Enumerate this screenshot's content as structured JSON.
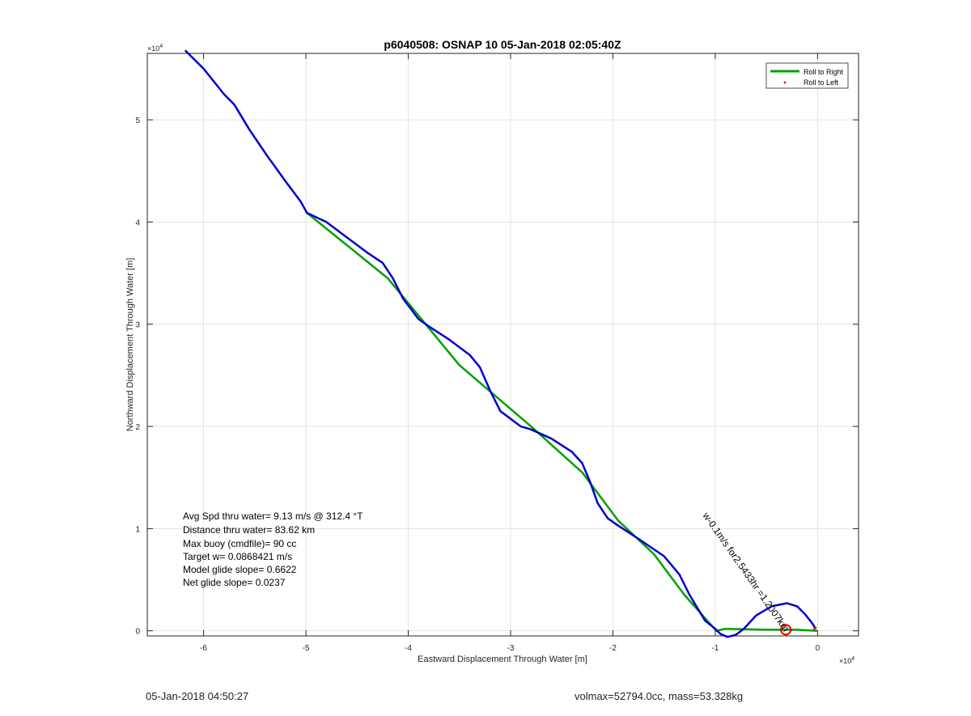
{
  "chart_data": {
    "type": "line",
    "title": "p6040508: OSNAP 10 05-Jan-2018 02:05:40Z",
    "xlabel": "Eastward Displacement Through Water [m]",
    "ylabel": "Northward Displacement Through Water [m]",
    "x_exponent_label": "×10",
    "y_exponent_label": "×10",
    "exponent": "4",
    "xlim": [
      -6.55,
      0.4
    ],
    "ylim": [
      -0.05,
      5.65
    ],
    "x_ticks": [
      -6,
      -5,
      -4,
      -3,
      -2,
      -1,
      0
    ],
    "y_ticks": [
      0,
      1,
      2,
      3,
      4,
      5
    ],
    "x_tick_labels": [
      "-6",
      "-5",
      "-4",
      "-3",
      "-2",
      "-1",
      "0"
    ],
    "y_tick_labels": [
      "0",
      "1",
      "2",
      "3",
      "4",
      "5"
    ],
    "grid": true,
    "legend_position": "top-right",
    "series": [
      {
        "name": "Roll to Right",
        "color": "#00a000",
        "style": "line",
        "x": [
          -4.99,
          -4.2,
          -3.5,
          -2.8,
          -2.3,
          -1.95,
          -1.6,
          -1.3,
          -0.99,
          -0.9,
          -0.5,
          -0.2,
          0.0
        ],
        "y": [
          4.09,
          3.45,
          2.6,
          2.0,
          1.55,
          1.08,
          0.75,
          0.35,
          0.0,
          0.02,
          0.01,
          0.01,
          0.0
        ]
      },
      {
        "name": "Roll to Left",
        "color": "#ff0000",
        "style": "points",
        "x": [
          -0.02,
          -0.03
        ],
        "y": [
          0.03,
          0.02
        ]
      }
    ],
    "track": {
      "color": "#0000cc",
      "x": [
        -6.18,
        -6.0,
        -5.8,
        -5.7,
        -5.55,
        -5.38,
        -5.2,
        -5.05,
        -4.99,
        -4.8,
        -4.6,
        -4.4,
        -4.25,
        -4.15,
        -4.05,
        -3.9,
        -3.8,
        -3.6,
        -3.4,
        -3.3,
        -3.2,
        -3.1,
        -2.9,
        -2.8,
        -2.6,
        -2.4,
        -2.3,
        -2.22,
        -2.15,
        -2.05,
        -1.95,
        -1.75,
        -1.5,
        -1.35,
        -1.25,
        -1.1,
        -1.0,
        -0.95,
        -0.88,
        -0.8,
        -0.72,
        -0.6,
        -0.45,
        -0.3,
        -0.2,
        -0.12,
        -0.05,
        -0.02
      ],
      "y": [
        5.68,
        5.5,
        5.25,
        5.15,
        4.9,
        4.65,
        4.4,
        4.2,
        4.09,
        4.0,
        3.85,
        3.7,
        3.6,
        3.45,
        3.25,
        3.05,
        2.98,
        2.85,
        2.7,
        2.58,
        2.35,
        2.15,
        2.0,
        1.97,
        1.88,
        1.75,
        1.64,
        1.45,
        1.25,
        1.1,
        1.03,
        0.9,
        0.73,
        0.55,
        0.35,
        0.1,
        0.02,
        -0.03,
        -0.06,
        -0.04,
        0.02,
        0.15,
        0.24,
        0.27,
        0.24,
        0.16,
        0.07,
        0.02
      ]
    },
    "marker": {
      "x": -0.31,
      "y": 0.01,
      "color": "#e00000"
    },
    "rotated_annotation": "w-0.1m/s for2.5433hr =1.2007km",
    "stats": [
      "Avg Spd thru water=  9.13 m/s @ 312.4 °T",
      "Distance thru water= 83.62 km",
      "Max buoy (cmdfile)= 90 cc",
      "Target w= 0.0868421 m/s",
      "Model glide slope= 0.6622",
      "Net glide slope= 0.0237"
    ]
  },
  "footer": {
    "left": "05-Jan-2018 04:50:27",
    "right": "volmax=52794.0cc, mass=53.328kg"
  }
}
